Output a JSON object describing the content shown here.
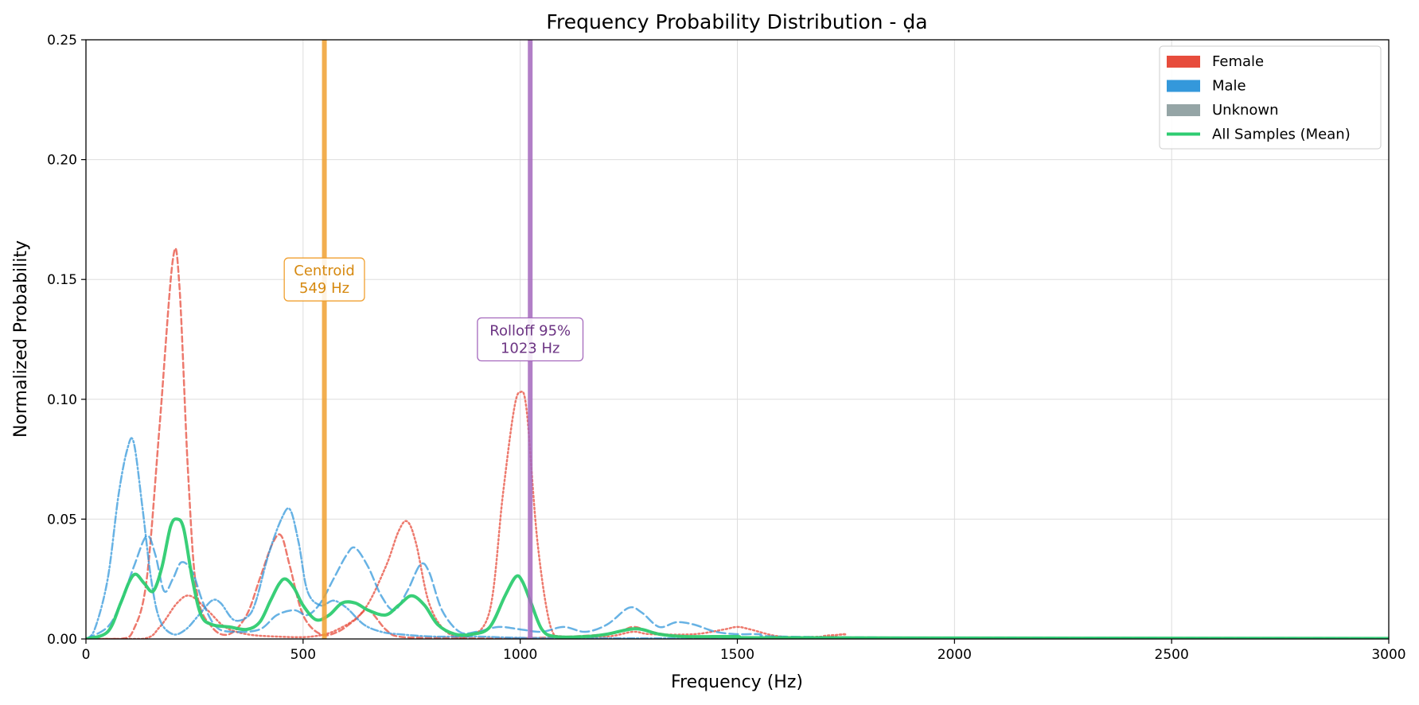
{
  "chart_data": {
    "type": "line",
    "title": "Frequency Probability Distribution - ḍa",
    "xlabel": "Frequency (Hz)",
    "ylabel": "Normalized Probability",
    "xlim": [
      0,
      3000
    ],
    "ylim": [
      0,
      0.25
    ],
    "xticks": [
      0,
      500,
      1000,
      1500,
      2000,
      2500,
      3000
    ],
    "xtick_labels": [
      "0",
      "500",
      "1000",
      "1500",
      "2000",
      "2500",
      "3000"
    ],
    "yticks": [
      0,
      0.05,
      0.1,
      0.15,
      0.2,
      0.25
    ],
    "ytick_labels": [
      "0.00",
      "0.05",
      "0.10",
      "0.15",
      "0.20",
      "0.25"
    ],
    "grid": true,
    "legend_position": "top-right",
    "legend": [
      {
        "label": "Female",
        "kind": "patch",
        "color": "#e74c3c"
      },
      {
        "label": "Male",
        "kind": "patch",
        "color": "#3498db"
      },
      {
        "label": "Unknown",
        "kind": "patch",
        "color": "#95a5a6"
      },
      {
        "label": "All Samples (Mean)",
        "kind": "line",
        "color": "#2ecc71"
      }
    ],
    "vlines": [
      {
        "name": "centroid",
        "x": 549,
        "color": "#f0a030",
        "label_lines": [
          "Centroid",
          "549 Hz"
        ],
        "label_y": 0.15,
        "text_color": "#d68910"
      },
      {
        "name": "rolloff",
        "x": 1023,
        "color": "#a569bd",
        "label_lines": [
          "Rolloff 95%",
          "1023 Hz"
        ],
        "label_y": 0.125,
        "text_color": "#6c3483"
      }
    ],
    "series": [
      {
        "group": "female",
        "color": "#e74c3c",
        "dash": "7,4",
        "points": [
          [
            0,
            0
          ],
          [
            80,
            0
          ],
          [
            110,
            0.004
          ],
          [
            140,
            0.025
          ],
          [
            170,
            0.09
          ],
          [
            200,
            0.158
          ],
          [
            215,
            0.148
          ],
          [
            235,
            0.07
          ],
          [
            255,
            0.02
          ],
          [
            290,
            0.005
          ],
          [
            330,
            0.002
          ],
          [
            370,
            0.01
          ],
          [
            400,
            0.025
          ],
          [
            430,
            0.04
          ],
          [
            450,
            0.043
          ],
          [
            470,
            0.03
          ],
          [
            500,
            0.01
          ],
          [
            540,
            0.002
          ],
          [
            580,
            0.003
          ],
          [
            620,
            0.008
          ],
          [
            650,
            0.012
          ],
          [
            690,
            0.004
          ],
          [
            720,
            0.001
          ],
          [
            800,
            0.0005
          ],
          [
            1000,
            0.0003
          ],
          [
            1200,
            0.002
          ],
          [
            1260,
            0.005
          ],
          [
            1300,
            0.003
          ],
          [
            1400,
            0.0005
          ],
          [
            1600,
            0.0002
          ],
          [
            3000,
            0
          ]
        ]
      },
      {
        "group": "female",
        "color": "#e74c3c",
        "dash": "2,3",
        "points": [
          [
            0,
            0
          ],
          [
            130,
            0
          ],
          [
            170,
            0.005
          ],
          [
            210,
            0.015
          ],
          [
            240,
            0.018
          ],
          [
            280,
            0.012
          ],
          [
            320,
            0.005
          ],
          [
            370,
            0.002
          ],
          [
            440,
            0.001
          ],
          [
            520,
            0.001
          ],
          [
            580,
            0.004
          ],
          [
            640,
            0.012
          ],
          [
            690,
            0.03
          ],
          [
            720,
            0.045
          ],
          [
            740,
            0.049
          ],
          [
            760,
            0.04
          ],
          [
            790,
            0.015
          ],
          [
            830,
            0.003
          ],
          [
            880,
            0.001
          ],
          [
            930,
            0.012
          ],
          [
            960,
            0.06
          ],
          [
            985,
            0.095
          ],
          [
            1000,
            0.103
          ],
          [
            1015,
            0.095
          ],
          [
            1040,
            0.04
          ],
          [
            1070,
            0.005
          ],
          [
            1100,
            0.001
          ],
          [
            1200,
            0.001
          ],
          [
            1260,
            0.003
          ],
          [
            1300,
            0.002
          ],
          [
            1400,
            0.002
          ],
          [
            1470,
            0.004
          ],
          [
            1500,
            0.005
          ],
          [
            1530,
            0.004
          ],
          [
            1600,
            0.001
          ],
          [
            1700,
            0.001
          ],
          [
            1750,
            0.002
          ],
          [
            1800,
            0.0005
          ],
          [
            3000,
            0
          ]
        ]
      },
      {
        "group": "male",
        "color": "#3498db",
        "dash": "9,3,2,3",
        "points": [
          [
            0,
            0
          ],
          [
            20,
            0.004
          ],
          [
            50,
            0.025
          ],
          [
            75,
            0.06
          ],
          [
            95,
            0.079
          ],
          [
            110,
            0.082
          ],
          [
            130,
            0.055
          ],
          [
            150,
            0.025
          ],
          [
            170,
            0.008
          ],
          [
            200,
            0.002
          ],
          [
            230,
            0.004
          ],
          [
            260,
            0.01
          ],
          [
            290,
            0.016
          ],
          [
            310,
            0.015
          ],
          [
            340,
            0.008
          ],
          [
            370,
            0.009
          ],
          [
            390,
            0.015
          ],
          [
            420,
            0.035
          ],
          [
            450,
            0.05
          ],
          [
            470,
            0.054
          ],
          [
            490,
            0.04
          ],
          [
            510,
            0.02
          ],
          [
            540,
            0.014
          ],
          [
            570,
            0.016
          ],
          [
            600,
            0.013
          ],
          [
            640,
            0.006
          ],
          [
            680,
            0.003
          ],
          [
            720,
            0.002
          ],
          [
            800,
            0.001
          ],
          [
            900,
            0.001
          ],
          [
            1000,
            0.0005
          ],
          [
            1200,
            0.0003
          ],
          [
            3000,
            0
          ]
        ]
      },
      {
        "group": "male",
        "color": "#3498db",
        "dash": "11,5",
        "points": [
          [
            0,
            0
          ],
          [
            50,
            0.005
          ],
          [
            80,
            0.015
          ],
          [
            110,
            0.03
          ],
          [
            140,
            0.043
          ],
          [
            160,
            0.035
          ],
          [
            180,
            0.02
          ],
          [
            200,
            0.025
          ],
          [
            220,
            0.032
          ],
          [
            245,
            0.028
          ],
          [
            270,
            0.015
          ],
          [
            300,
            0.005
          ],
          [
            340,
            0.003
          ],
          [
            400,
            0.004
          ],
          [
            440,
            0.01
          ],
          [
            480,
            0.012
          ],
          [
            510,
            0.01
          ],
          [
            540,
            0.015
          ],
          [
            570,
            0.025
          ],
          [
            600,
            0.035
          ],
          [
            620,
            0.038
          ],
          [
            650,
            0.03
          ],
          [
            680,
            0.018
          ],
          [
            710,
            0.012
          ],
          [
            740,
            0.02
          ],
          [
            770,
            0.031
          ],
          [
            790,
            0.028
          ],
          [
            820,
            0.012
          ],
          [
            860,
            0.003
          ],
          [
            900,
            0.003
          ],
          [
            950,
            0.005
          ],
          [
            1000,
            0.004
          ],
          [
            1050,
            0.003
          ],
          [
            1100,
            0.005
          ],
          [
            1150,
            0.003
          ],
          [
            1200,
            0.006
          ],
          [
            1250,
            0.013
          ],
          [
            1280,
            0.011
          ],
          [
            1320,
            0.005
          ],
          [
            1360,
            0.007
          ],
          [
            1400,
            0.006
          ],
          [
            1450,
            0.003
          ],
          [
            1500,
            0.002
          ],
          [
            1550,
            0.002
          ],
          [
            1600,
            0.001
          ],
          [
            2000,
            0.0005
          ],
          [
            3000,
            0.0003
          ]
        ]
      },
      {
        "group": "mean",
        "color": "#2ecc71",
        "dash": "",
        "points": [
          [
            0,
            0
          ],
          [
            50,
            0.003
          ],
          [
            80,
            0.015
          ],
          [
            100,
            0.024
          ],
          [
            115,
            0.027
          ],
          [
            135,
            0.023
          ],
          [
            155,
            0.02
          ],
          [
            175,
            0.03
          ],
          [
            195,
            0.047
          ],
          [
            210,
            0.05
          ],
          [
            225,
            0.046
          ],
          [
            245,
            0.025
          ],
          [
            265,
            0.01
          ],
          [
            290,
            0.006
          ],
          [
            330,
            0.005
          ],
          [
            370,
            0.004
          ],
          [
            400,
            0.007
          ],
          [
            425,
            0.016
          ],
          [
            445,
            0.023
          ],
          [
            460,
            0.025
          ],
          [
            480,
            0.021
          ],
          [
            500,
            0.014
          ],
          [
            530,
            0.008
          ],
          [
            560,
            0.01
          ],
          [
            590,
            0.015
          ],
          [
            620,
            0.015
          ],
          [
            650,
            0.012
          ],
          [
            690,
            0.01
          ],
          [
            720,
            0.014
          ],
          [
            750,
            0.018
          ],
          [
            780,
            0.014
          ],
          [
            810,
            0.006
          ],
          [
            850,
            0.002
          ],
          [
            890,
            0.002
          ],
          [
            930,
            0.005
          ],
          [
            965,
            0.018
          ],
          [
            990,
            0.026
          ],
          [
            1005,
            0.024
          ],
          [
            1025,
            0.015
          ],
          [
            1050,
            0.004
          ],
          [
            1080,
            0.001
          ],
          [
            1150,
            0.001
          ],
          [
            1200,
            0.002
          ],
          [
            1250,
            0.004
          ],
          [
            1280,
            0.004
          ],
          [
            1320,
            0.002
          ],
          [
            1380,
            0.001
          ],
          [
            1500,
            0.001
          ],
          [
            1600,
            0.0005
          ],
          [
            3000,
            0.0002
          ]
        ]
      }
    ]
  }
}
